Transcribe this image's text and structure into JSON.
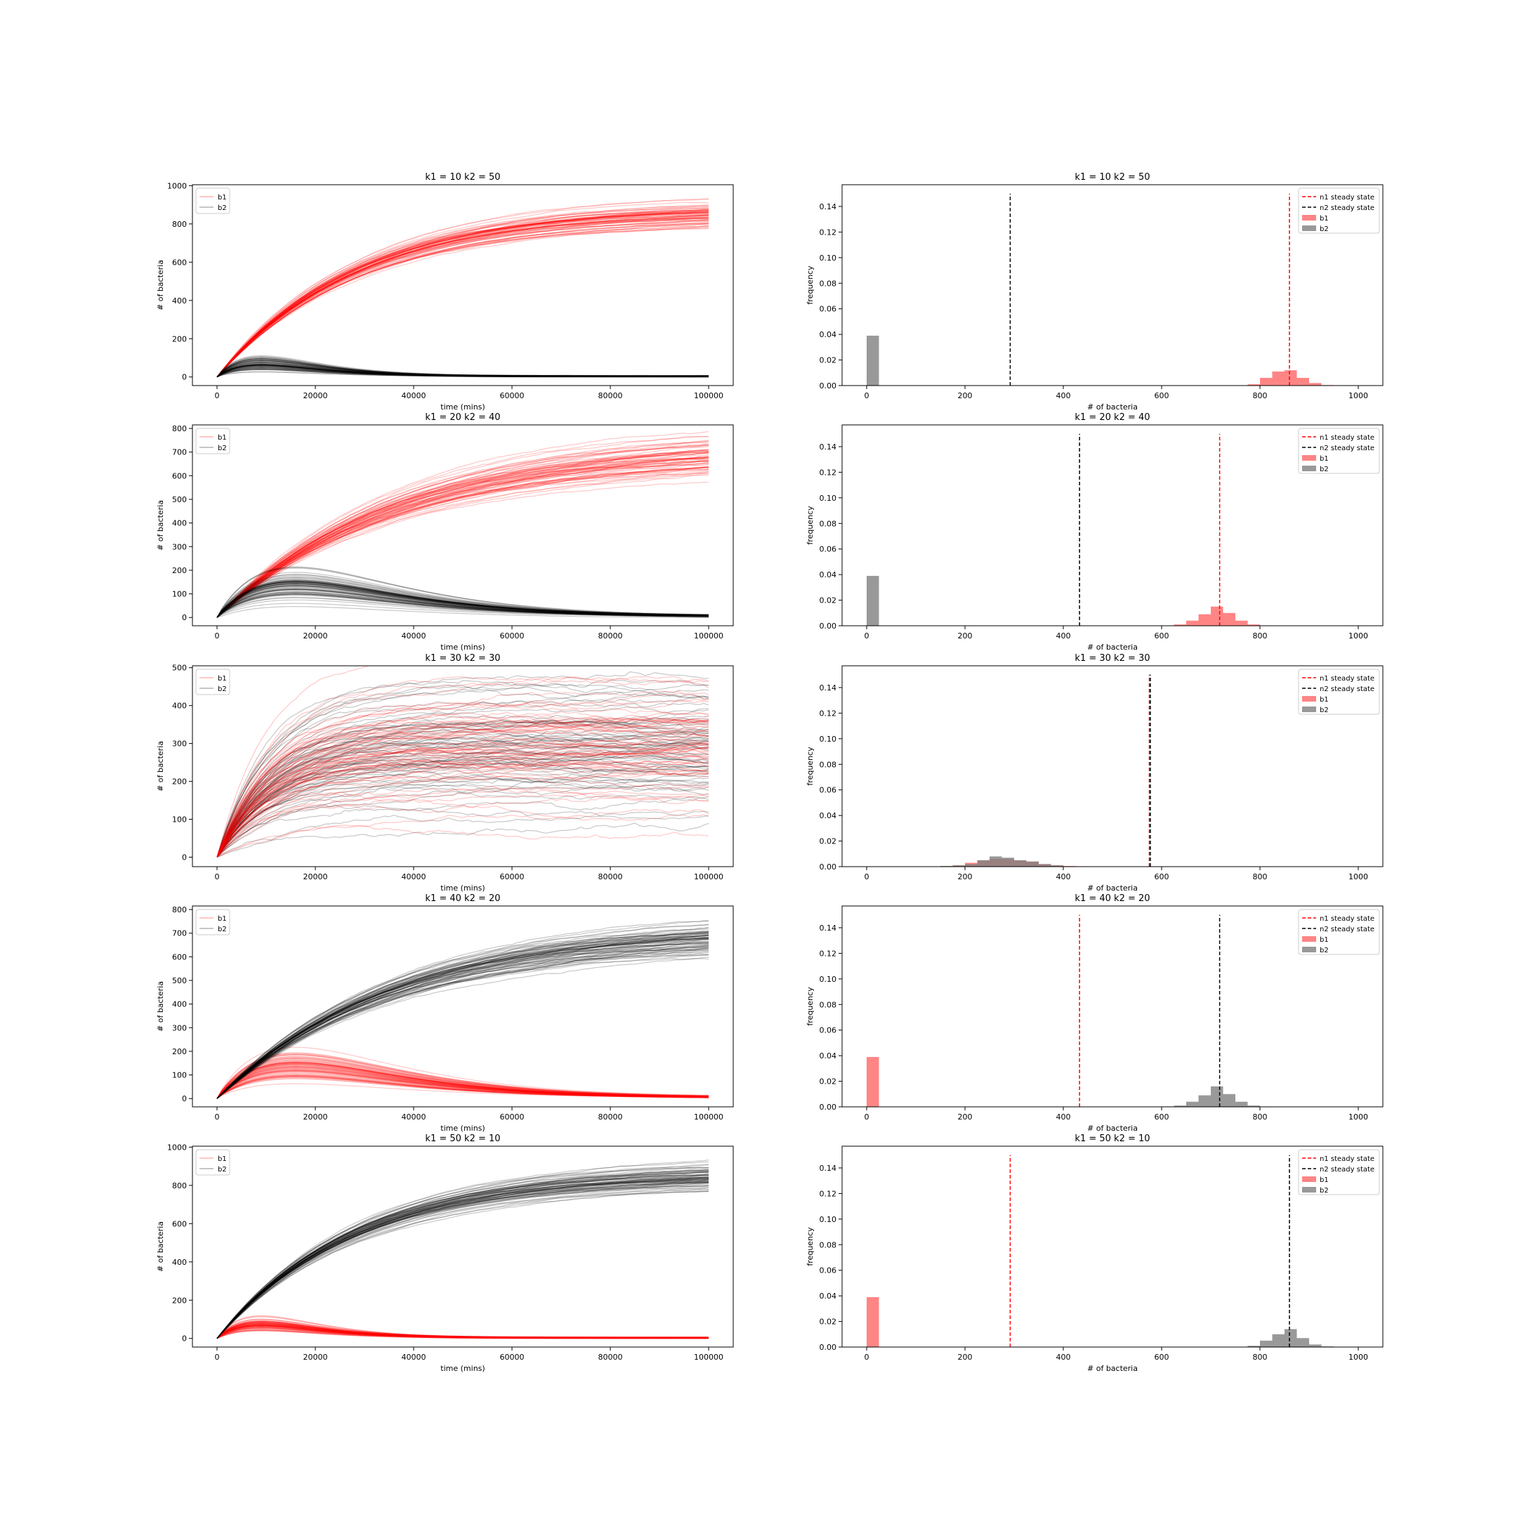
{
  "chart_data": [
    {
      "type": "line",
      "title": "k1 = 10 k2 = 50",
      "xlabel": "time (mins)",
      "ylabel": "# of bacteria",
      "xlim": [
        -5000,
        105000
      ],
      "ylim": [
        -45,
        1005
      ],
      "xticks": [
        0,
        20000,
        40000,
        60000,
        80000,
        100000
      ],
      "yticks": [
        0,
        200,
        400,
        600,
        800,
        1000
      ],
      "legend": {
        "position": "top-left",
        "entries": [
          "b1",
          "b2"
        ]
      },
      "series": [
        {
          "name": "b1",
          "color": "#ff0000",
          "start": 0,
          "tau": 28000,
          "steady": 860,
          "spread": 35,
          "bump": 0,
          "bump_width": 1
        },
        {
          "name": "b2",
          "color": "#000000",
          "start": 0,
          "tau": 1,
          "steady": 3,
          "spread": 2,
          "bump": 70,
          "bump_width": 9000
        }
      ]
    },
    {
      "type": "bar",
      "title": "k1 = 10 k2 = 50",
      "xlabel": "# of bacteria",
      "ylabel": "frequency",
      "xlim": [
        -50,
        1050
      ],
      "ylim": [
        0,
        0.157
      ],
      "xticks": [
        0,
        200,
        400,
        600,
        800,
        1000
      ],
      "yticks": [
        0.0,
        0.02,
        0.04,
        0.06,
        0.08,
        0.1,
        0.12,
        0.14
      ],
      "legend": {
        "position": "top-right",
        "entries": [
          "n1 steady state",
          "n2 steady state",
          "b1",
          "b2"
        ]
      },
      "steady_states": [
        {
          "name": "n1 steady state",
          "color": "#ff0000",
          "x": 860,
          "height": 0.15
        },
        {
          "name": "n2 steady state",
          "color": "#000000",
          "x": 292,
          "height": 0.15
        }
      ],
      "histograms": [
        {
          "name": "b1",
          "color": "#ff6666",
          "bin_width": 25,
          "bins": [
            [
              775,
              0.001
            ],
            [
              800,
              0.006
            ],
            [
              825,
              0.011
            ],
            [
              850,
              0.012
            ],
            [
              875,
              0.006
            ],
            [
              900,
              0.002
            ],
            [
              925,
              0.0004
            ]
          ]
        },
        {
          "name": "b2",
          "color": "#808080",
          "bin_width": 25,
          "bins": [
            [
              0,
              0.039
            ]
          ]
        }
      ]
    },
    {
      "type": "line",
      "title": "k1 = 20 k2 = 40",
      "xlabel": "time (mins)",
      "ylabel": "# of bacteria",
      "xlim": [
        -5000,
        105000
      ],
      "ylim": [
        -35,
        815
      ],
      "xticks": [
        0,
        20000,
        40000,
        60000,
        80000,
        100000
      ],
      "yticks": [
        0,
        100,
        200,
        300,
        400,
        500,
        600,
        700,
        800
      ],
      "legend": {
        "position": "top-left",
        "entries": [
          "b1",
          "b2"
        ]
      },
      "series": [
        {
          "name": "b1",
          "color": "#ff0000",
          "start": 0,
          "tau": 35000,
          "steady": 715,
          "spread": 45,
          "bump": 0,
          "bump_width": 1
        },
        {
          "name": "b2",
          "color": "#000000",
          "start": 0,
          "tau": 1,
          "steady": 3,
          "spread": 2,
          "bump": 130,
          "bump_width": 16000
        }
      ]
    },
    {
      "type": "bar",
      "title": "k1 = 20 k2 = 40",
      "xlabel": "# of bacteria",
      "ylabel": "frequency",
      "xlim": [
        -50,
        1050
      ],
      "ylim": [
        0,
        0.157
      ],
      "xticks": [
        0,
        200,
        400,
        600,
        800,
        1000
      ],
      "yticks": [
        0.0,
        0.02,
        0.04,
        0.06,
        0.08,
        0.1,
        0.12,
        0.14
      ],
      "legend": {
        "position": "top-right",
        "entries": [
          "n1 steady state",
          "n2 steady state",
          "b1",
          "b2"
        ]
      },
      "steady_states": [
        {
          "name": "n1 steady state",
          "color": "#ff0000",
          "x": 718,
          "height": 0.15
        },
        {
          "name": "n2 steady state",
          "color": "#000000",
          "x": 433,
          "height": 0.15
        }
      ],
      "histograms": [
        {
          "name": "b1",
          "color": "#ff6666",
          "bin_width": 25,
          "bins": [
            [
              625,
              0.001
            ],
            [
              650,
              0.004
            ],
            [
              675,
              0.009
            ],
            [
              700,
              0.015
            ],
            [
              725,
              0.01
            ],
            [
              750,
              0.004
            ],
            [
              775,
              0.001
            ]
          ]
        },
        {
          "name": "b2",
          "color": "#808080",
          "bin_width": 25,
          "bins": [
            [
              0,
              0.039
            ]
          ]
        }
      ]
    },
    {
      "type": "line",
      "title": "k1 = 30 k2 = 30",
      "xlabel": "time (mins)",
      "ylabel": "# of bacteria",
      "xlim": [
        -5000,
        105000
      ],
      "ylim": [
        -25,
        505
      ],
      "xticks": [
        0,
        20000,
        40000,
        60000,
        80000,
        100000
      ],
      "yticks": [
        0,
        100,
        200,
        300,
        400,
        500
      ],
      "legend": {
        "position": "top-left",
        "entries": [
          "b1",
          "b2"
        ]
      },
      "series": [
        {
          "name": "b2",
          "color": "#000000",
          "start": 0,
          "tau": 11000,
          "steady": 285,
          "spread": 85,
          "bump": 0,
          "bump_width": 1
        },
        {
          "name": "b1",
          "color": "#ff0000",
          "start": 0,
          "tau": 11000,
          "steady": 285,
          "spread": 85,
          "bump": 0,
          "bump_width": 1
        }
      ]
    },
    {
      "type": "bar",
      "title": "k1 = 30 k2 = 30",
      "xlabel": "# of bacteria",
      "ylabel": "frequency",
      "xlim": [
        -50,
        1050
      ],
      "ylim": [
        0,
        0.157
      ],
      "xticks": [
        0,
        200,
        400,
        600,
        800,
        1000
      ],
      "yticks": [
        0.0,
        0.02,
        0.04,
        0.06,
        0.08,
        0.1,
        0.12,
        0.14
      ],
      "legend": {
        "position": "top-right",
        "entries": [
          "n1 steady state",
          "n2 steady state",
          "b1",
          "b2"
        ]
      },
      "steady_states": [
        {
          "name": "n1 steady state",
          "color": "#ff0000",
          "x": 575,
          "height": 0.15
        },
        {
          "name": "n2 steady state",
          "color": "#000000",
          "x": 577,
          "height": 0.15
        }
      ],
      "histograms": [
        {
          "name": "b1",
          "color": "#ff6666",
          "bin_width": 25,
          "bins": [
            [
              150,
              0.0005
            ],
            [
              175,
              0.001
            ],
            [
              200,
              0.003
            ],
            [
              225,
              0.005
            ],
            [
              250,
              0.006
            ],
            [
              275,
              0.006
            ],
            [
              300,
              0.005
            ],
            [
              325,
              0.004
            ],
            [
              350,
              0.002
            ],
            [
              375,
              0.001
            ],
            [
              400,
              0.0005
            ],
            [
              425,
              0.0003
            ]
          ]
        },
        {
          "name": "b2",
          "color": "#808080",
          "bin_width": 25,
          "bins": [
            [
              150,
              0.0005
            ],
            [
              175,
              0.001
            ],
            [
              200,
              0.002
            ],
            [
              225,
              0.005
            ],
            [
              250,
              0.008
            ],
            [
              275,
              0.007
            ],
            [
              300,
              0.005
            ],
            [
              325,
              0.004
            ],
            [
              350,
              0.002
            ],
            [
              375,
              0.001
            ]
          ]
        }
      ]
    },
    {
      "type": "line",
      "title": "k1 = 40 k2 = 20",
      "xlabel": "time (mins)",
      "ylabel": "# of bacteria",
      "xlim": [
        -5000,
        105000
      ],
      "ylim": [
        -35,
        815
      ],
      "xticks": [
        0,
        20000,
        40000,
        60000,
        80000,
        100000
      ],
      "yticks": [
        0,
        100,
        200,
        300,
        400,
        500,
        600,
        700,
        800
      ],
      "legend": {
        "position": "top-left",
        "entries": [
          "b1",
          "b2"
        ]
      },
      "series": [
        {
          "name": "b1",
          "color": "#ff0000",
          "start": 0,
          "tau": 1,
          "steady": 3,
          "spread": 2,
          "bump": 130,
          "bump_width": 16000
        },
        {
          "name": "b2",
          "color": "#000000",
          "start": 0,
          "tau": 35000,
          "steady": 715,
          "spread": 45,
          "bump": 0,
          "bump_width": 1
        }
      ]
    },
    {
      "type": "bar",
      "title": "k1 = 40 k2 = 20",
      "xlabel": "# of bacteria",
      "ylabel": "frequency",
      "xlim": [
        -50,
        1050
      ],
      "ylim": [
        0,
        0.157
      ],
      "xticks": [
        0,
        200,
        400,
        600,
        800,
        1000
      ],
      "yticks": [
        0.0,
        0.02,
        0.04,
        0.06,
        0.08,
        0.1,
        0.12,
        0.14
      ],
      "legend": {
        "position": "top-right",
        "entries": [
          "n1 steady state",
          "n2 steady state",
          "b1",
          "b2"
        ]
      },
      "steady_states": [
        {
          "name": "n1 steady state",
          "color": "#ff0000",
          "x": 433,
          "height": 0.15
        },
        {
          "name": "n2 steady state",
          "color": "#000000",
          "x": 718,
          "height": 0.15
        }
      ],
      "histograms": [
        {
          "name": "b1",
          "color": "#ff6666",
          "bin_width": 25,
          "bins": [
            [
              0,
              0.039
            ]
          ]
        },
        {
          "name": "b2",
          "color": "#808080",
          "bin_width": 25,
          "bins": [
            [
              600,
              0.0003
            ],
            [
              625,
              0.001
            ],
            [
              650,
              0.004
            ],
            [
              675,
              0.009
            ],
            [
              700,
              0.016
            ],
            [
              725,
              0.01
            ],
            [
              750,
              0.004
            ],
            [
              775,
              0.001
            ],
            [
              800,
              0.0003
            ]
          ]
        }
      ]
    },
    {
      "type": "line",
      "title": "k1 = 50 k2 = 10",
      "xlabel": "time (mins)",
      "ylabel": "# of bacteria",
      "xlim": [
        -5000,
        105000
      ],
      "ylim": [
        -45,
        1005
      ],
      "xticks": [
        0,
        20000,
        40000,
        60000,
        80000,
        100000
      ],
      "yticks": [
        0,
        200,
        400,
        600,
        800,
        1000
      ],
      "legend": {
        "position": "top-left",
        "entries": [
          "b1",
          "b2"
        ]
      },
      "series": [
        {
          "name": "b1",
          "color": "#ff0000",
          "start": 0,
          "tau": 1,
          "steady": 3,
          "spread": 2,
          "bump": 70,
          "bump_width": 9000
        },
        {
          "name": "b2",
          "color": "#000000",
          "start": 0,
          "tau": 28000,
          "steady": 860,
          "spread": 35,
          "bump": 0,
          "bump_width": 1
        }
      ]
    },
    {
      "type": "bar",
      "title": "k1 = 50 k2 = 10",
      "xlabel": "# of bacteria",
      "ylabel": "frequency",
      "xlim": [
        -50,
        1050
      ],
      "ylim": [
        0,
        0.157
      ],
      "xticks": [
        0,
        200,
        400,
        600,
        800,
        1000
      ],
      "yticks": [
        0.0,
        0.02,
        0.04,
        0.06,
        0.08,
        0.1,
        0.12,
        0.14
      ],
      "legend": {
        "position": "top-right",
        "entries": [
          "n1 steady state",
          "n2 steady state",
          "b1",
          "b2"
        ]
      },
      "steady_states": [
        {
          "name": "n1 steady state",
          "color": "#ff0000",
          "x": 292,
          "height": 0.15
        },
        {
          "name": "n2 steady state",
          "color": "#000000",
          "x": 860,
          "height": 0.15
        }
      ],
      "histograms": [
        {
          "name": "b1",
          "color": "#ff6666",
          "bin_width": 25,
          "bins": [
            [
              0,
              0.039
            ]
          ]
        },
        {
          "name": "b2",
          "color": "#808080",
          "bin_width": 25,
          "bins": [
            [
              775,
              0.001
            ],
            [
              800,
              0.005
            ],
            [
              825,
              0.01
            ],
            [
              850,
              0.014
            ],
            [
              875,
              0.007
            ],
            [
              900,
              0.002
            ],
            [
              925,
              0.0005
            ]
          ]
        }
      ]
    }
  ]
}
